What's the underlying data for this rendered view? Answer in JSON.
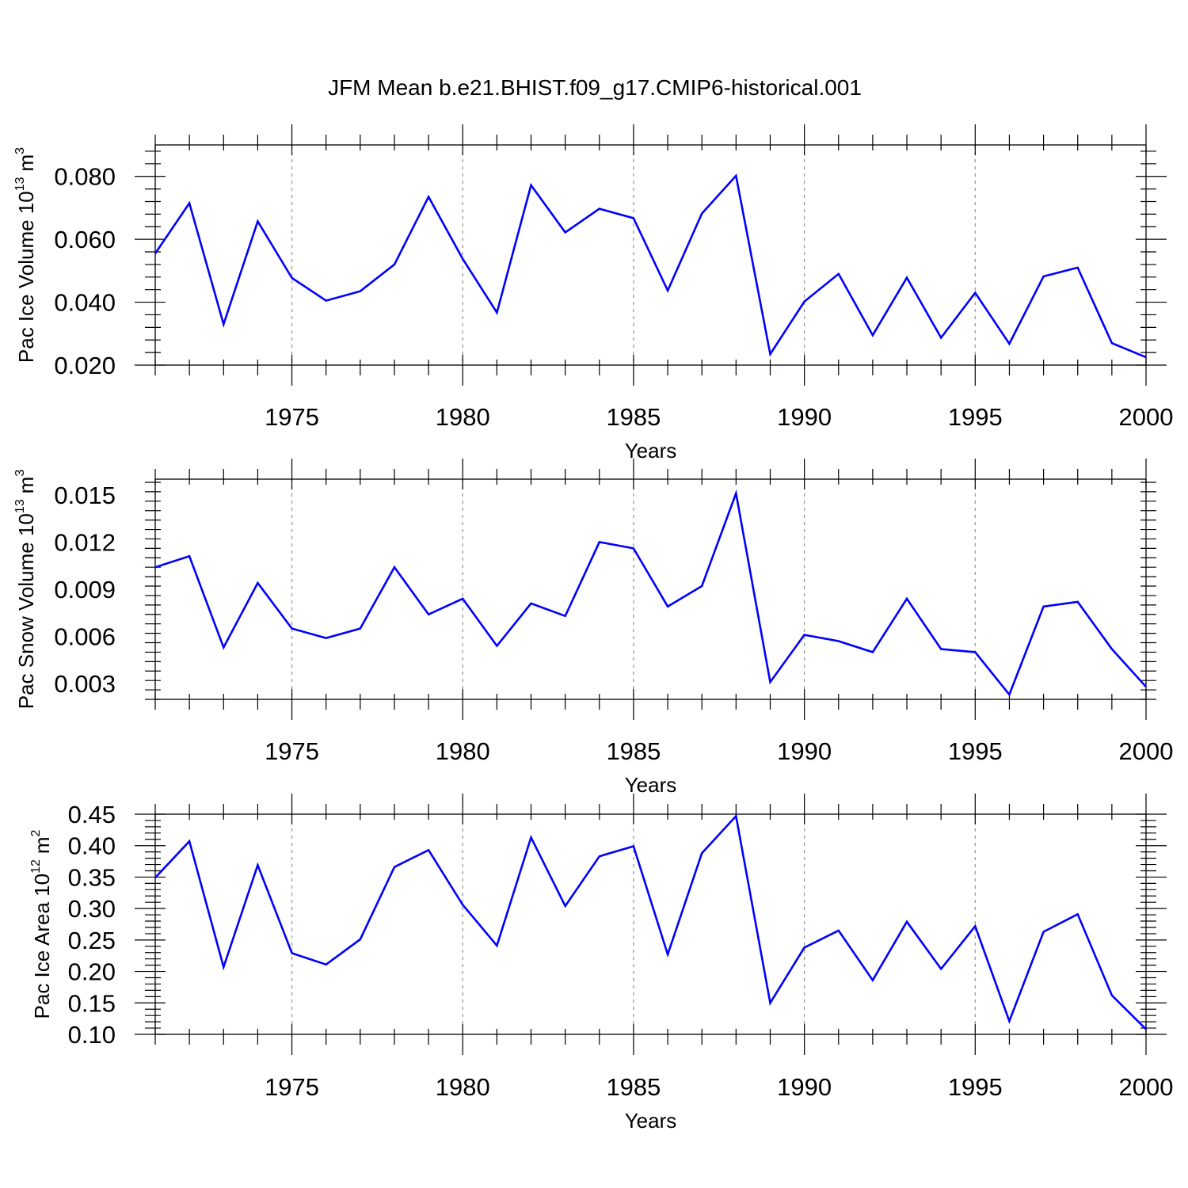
{
  "chart_data": [
    {
      "type": "line",
      "title": "JFM Mean b.e21.BHIST.f09_g17.CMIP6-historical.001",
      "ylabel": "Pac Ice Volume 10",
      "ylabel_exp": "13",
      "ylabel_unit": "m",
      "ylabel_unit_exp": "3",
      "xlabel": "Years",
      "xlim": [
        1971,
        2000
      ],
      "ylim": [
        0.02,
        0.09
      ],
      "xticks": [
        1975,
        1980,
        1985,
        1990,
        1995,
        2000
      ],
      "xtick_labels": [
        "1975",
        "1980",
        "1985",
        "1990",
        "1995",
        "2000"
      ],
      "yticks": [
        0.02,
        0.04,
        0.06,
        0.08
      ],
      "ytick_labels": [
        "0.020",
        "0.040",
        "0.060",
        "0.080"
      ],
      "grid": "vertical-dashed",
      "series": [
        {
          "name": "Pac Ice Volume",
          "color": "#0000ff",
          "x": [
            1971,
            1972,
            1973,
            1974,
            1975,
            1976,
            1977,
            1978,
            1979,
            1980,
            1981,
            1982,
            1983,
            1984,
            1985,
            1986,
            1987,
            1988,
            1989,
            1990,
            1991,
            1992,
            1993,
            1994,
            1995,
            1996,
            1997,
            1998,
            1999,
            2000
          ],
          "values": [
            0.0555,
            0.0715,
            0.033,
            0.0657,
            0.0477,
            0.0405,
            0.0435,
            0.052,
            0.0735,
            0.0538,
            0.0367,
            0.0772,
            0.0622,
            0.0697,
            0.0667,
            0.0437,
            0.0682,
            0.0802,
            0.0235,
            0.0402,
            0.049,
            0.0295,
            0.0478,
            0.0287,
            0.043,
            0.0268,
            0.0482,
            0.051,
            0.027,
            0.0225
          ]
        }
      ]
    },
    {
      "type": "line",
      "title": "",
      "ylabel": "Pac Snow Volume 10",
      "ylabel_exp": "13",
      "ylabel_unit": "m",
      "ylabel_unit_exp": "3",
      "xlabel": "Years",
      "xlim": [
        1971,
        2000
      ],
      "ylim": [
        0.002,
        0.016
      ],
      "xticks": [
        1975,
        1980,
        1985,
        1990,
        1995,
        2000
      ],
      "xtick_labels": [
        "1975",
        "1980",
        "1985",
        "1990",
        "1995",
        "2000"
      ],
      "yticks": [
        0.003,
        0.006,
        0.009,
        0.012,
        0.015
      ],
      "ytick_labels": [
        "0.003",
        "0.006",
        "0.009",
        "0.012",
        "0.015"
      ],
      "grid": "vertical-dashed",
      "series": [
        {
          "name": "Pac Snow Volume",
          "color": "#0000ff",
          "x": [
            1971,
            1972,
            1973,
            1974,
            1975,
            1976,
            1977,
            1978,
            1979,
            1980,
            1981,
            1982,
            1983,
            1984,
            1985,
            1986,
            1987,
            1988,
            1989,
            1990,
            1991,
            1992,
            1993,
            1994,
            1995,
            1996,
            1997,
            1998,
            1999,
            2000
          ],
          "values": [
            0.0104,
            0.0111,
            0.0053,
            0.0094,
            0.0065,
            0.0059,
            0.0065,
            0.0104,
            0.0074,
            0.0084,
            0.0054,
            0.0081,
            0.0073,
            0.012,
            0.0116,
            0.0079,
            0.0092,
            0.0151,
            0.0031,
            0.0061,
            0.0057,
            0.005,
            0.0084,
            0.0052,
            0.005,
            0.0023,
            0.0079,
            0.0082,
            0.0052,
            0.0028
          ]
        }
      ]
    },
    {
      "type": "line",
      "title": "",
      "ylabel": "Pac Ice Area 10",
      "ylabel_exp": "12",
      "ylabel_unit": "m",
      "ylabel_unit_exp": "2",
      "xlabel": "Years",
      "xlim": [
        1971,
        2000
      ],
      "ylim": [
        0.1,
        0.45
      ],
      "xticks": [
        1975,
        1980,
        1985,
        1990,
        1995,
        2000
      ],
      "xtick_labels": [
        "1975",
        "1980",
        "1985",
        "1990",
        "1995",
        "2000"
      ],
      "yticks": [
        0.1,
        0.15,
        0.2,
        0.25,
        0.3,
        0.35,
        0.4,
        0.45
      ],
      "ytick_labels": [
        "0.10",
        "0.15",
        "0.20",
        "0.25",
        "0.30",
        "0.35",
        "0.40",
        "0.45"
      ],
      "grid": "vertical-dashed",
      "series": [
        {
          "name": "Pac Ice Area",
          "color": "#0000ff",
          "x": [
            1971,
            1972,
            1973,
            1974,
            1975,
            1976,
            1977,
            1978,
            1979,
            1980,
            1981,
            1982,
            1983,
            1984,
            1985,
            1986,
            1987,
            1988,
            1989,
            1990,
            1991,
            1992,
            1993,
            1994,
            1995,
            1996,
            1997,
            1998,
            1999,
            2000
          ],
          "values": [
            0.349,
            0.407,
            0.207,
            0.369,
            0.229,
            0.211,
            0.251,
            0.366,
            0.393,
            0.306,
            0.241,
            0.413,
            0.304,
            0.383,
            0.399,
            0.227,
            0.388,
            0.447,
            0.15,
            0.238,
            0.265,
            0.186,
            0.279,
            0.204,
            0.272,
            0.121,
            0.263,
            0.291,
            0.162,
            0.108
          ]
        }
      ]
    }
  ]
}
